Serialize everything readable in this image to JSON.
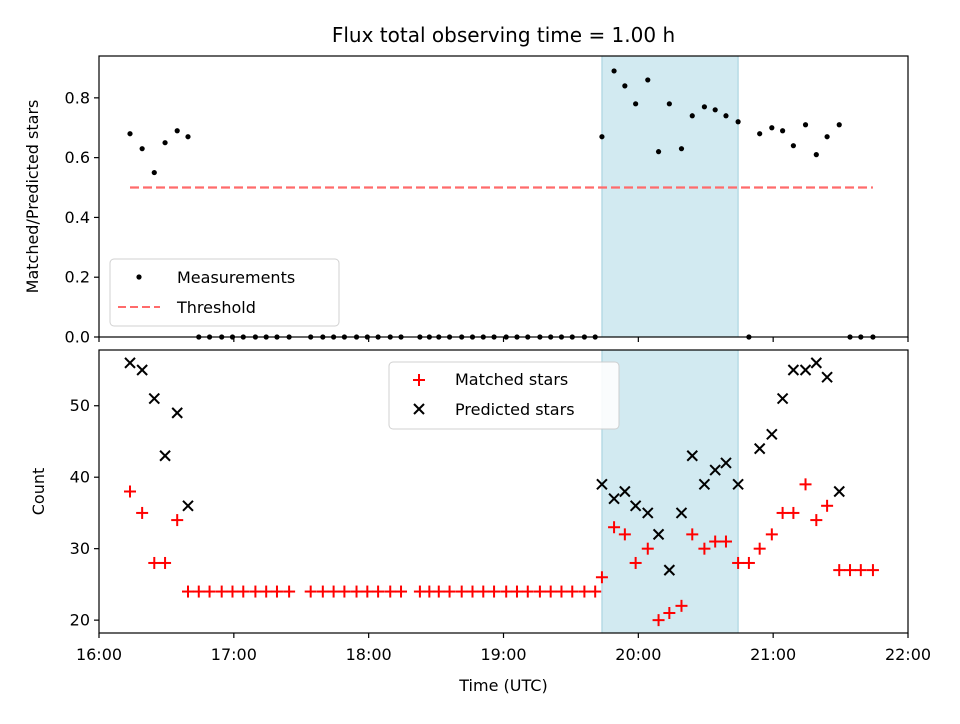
{
  "chart_data": [
    {
      "type": "scatter",
      "title": "Flux total observing time = 1.00 h",
      "xlabel": "",
      "ylabel": "Matched/Predicted stars",
      "ylim": [
        0,
        0.94
      ],
      "xlim": [
        16.0,
        22.0
      ],
      "yticks": [
        0.0,
        0.2,
        0.4,
        0.6,
        0.8
      ],
      "ytick_labels": [
        "0.0",
        "0.2",
        "0.4",
        "0.6",
        "0.8"
      ],
      "highlight_span": {
        "x": [
          19.73,
          20.74
        ],
        "color": "#add8e6"
      },
      "threshold": {
        "name": "Threshold",
        "value": 0.5,
        "x": [
          16.23,
          21.74
        ],
        "color": "#ff6b6b"
      },
      "legend": [
        "Measurements",
        "Threshold"
      ],
      "legend_position": "lower-left",
      "series": [
        {
          "name": "Measurements",
          "x": [
            16.23,
            16.32,
            16.41,
            16.49,
            16.58,
            16.66,
            16.74,
            16.82,
            16.91,
            16.99,
            17.07,
            17.16,
            17.24,
            17.32,
            17.41,
            17.57,
            17.66,
            17.74,
            17.82,
            17.91,
            17.99,
            18.07,
            18.16,
            18.24,
            18.38,
            18.45,
            18.52,
            18.6,
            18.69,
            18.77,
            18.85,
            18.93,
            19.02,
            19.1,
            19.18,
            19.27,
            19.35,
            19.43,
            19.51,
            19.6,
            19.68,
            19.73,
            19.82,
            19.9,
            19.98,
            20.07,
            20.15,
            20.23,
            20.32,
            20.4,
            20.49,
            20.57,
            20.65,
            20.74,
            20.82,
            20.9,
            20.99,
            21.07,
            21.15,
            21.24,
            21.32,
            21.4,
            21.49,
            21.57,
            21.65,
            21.74
          ],
          "y": [
            0.68,
            0.63,
            0.55,
            0.65,
            0.69,
            0.67,
            0,
            0,
            0,
            0,
            0,
            0,
            0,
            0,
            0,
            0,
            0,
            0,
            0,
            0,
            0,
            0,
            0,
            0,
            0,
            0,
            0,
            0,
            0,
            0,
            0,
            0,
            0,
            0,
            0,
            0,
            0,
            0,
            0,
            0,
            0,
            0.67,
            0.89,
            0.84,
            0.78,
            0.86,
            0.62,
            0.78,
            0.63,
            0.74,
            0.77,
            0.76,
            0.74,
            0.72,
            0,
            0.68,
            0.7,
            0.69,
            0.64,
            0.71,
            0.61,
            0.67,
            0.71,
            0,
            0,
            0
          ]
        }
      ]
    },
    {
      "type": "scatter",
      "title": "",
      "xlabel": "Time (UTC)",
      "ylabel": "Count",
      "ylim": [
        18.2,
        57.8
      ],
      "xlim": [
        16.0,
        22.0
      ],
      "yticks": [
        20,
        30,
        40,
        50
      ],
      "ytick_labels": [
        "20",
        "30",
        "40",
        "50"
      ],
      "xticks": [
        16,
        17,
        18,
        19,
        20,
        21,
        22
      ],
      "xtick_labels": [
        "16:00",
        "17:00",
        "18:00",
        "19:00",
        "20:00",
        "21:00",
        "22:00"
      ],
      "highlight_span": {
        "x": [
          19.73,
          20.74
        ],
        "color": "#add8e6"
      },
      "legend": [
        "Matched stars",
        "Predicted stars"
      ],
      "legend_position": "upper-center",
      "series": [
        {
          "name": "Matched stars",
          "marker": "plus",
          "color": "#ff0000",
          "x": [
            16.23,
            16.32,
            16.41,
            16.49,
            16.58,
            16.66,
            16.74,
            16.82,
            16.91,
            16.99,
            17.07,
            17.16,
            17.24,
            17.32,
            17.41,
            17.57,
            17.66,
            17.74,
            17.82,
            17.91,
            17.99,
            18.07,
            18.16,
            18.24,
            18.38,
            18.45,
            18.52,
            18.6,
            18.69,
            18.77,
            18.85,
            18.93,
            19.02,
            19.1,
            19.18,
            19.27,
            19.35,
            19.43,
            19.51,
            19.6,
            19.68,
            19.73,
            19.82,
            19.9,
            19.98,
            20.07,
            20.15,
            20.23,
            20.32,
            20.4,
            20.49,
            20.57,
            20.65,
            20.74,
            20.82,
            20.9,
            20.99,
            21.07,
            21.15,
            21.24,
            21.32,
            21.4,
            21.49,
            21.57,
            21.65,
            21.74
          ],
          "y": [
            38,
            35,
            28,
            28,
            34,
            24,
            24,
            24,
            24,
            24,
            24,
            24,
            24,
            24,
            24,
            24,
            24,
            24,
            24,
            24,
            24,
            24,
            24,
            24,
            24,
            24,
            24,
            24,
            24,
            24,
            24,
            24,
            24,
            24,
            24,
            24,
            24,
            24,
            24,
            24,
            24,
            26,
            33,
            32,
            28,
            30,
            20,
            21,
            22,
            32,
            30,
            31,
            31,
            28,
            28,
            30,
            32,
            35,
            35,
            39,
            34,
            36,
            27,
            27,
            27,
            27
          ]
        },
        {
          "name": "Predicted stars",
          "marker": "x",
          "color": "#000000",
          "x": [
            16.23,
            16.32,
            16.41,
            16.49,
            16.58,
            16.66,
            19.73,
            19.82,
            19.9,
            19.98,
            20.07,
            20.15,
            20.23,
            20.32,
            20.4,
            20.49,
            20.57,
            20.65,
            20.74,
            20.9,
            20.99,
            21.07,
            21.15,
            21.24,
            21.32,
            21.4,
            21.49
          ],
          "y": [
            56,
            55,
            51,
            43,
            49,
            36,
            39,
            37,
            38,
            36,
            35,
            32,
            27,
            35,
            43,
            39,
            41,
            42,
            39,
            44,
            46,
            51,
            55,
            55,
            56,
            54,
            38
          ]
        }
      ]
    }
  ]
}
